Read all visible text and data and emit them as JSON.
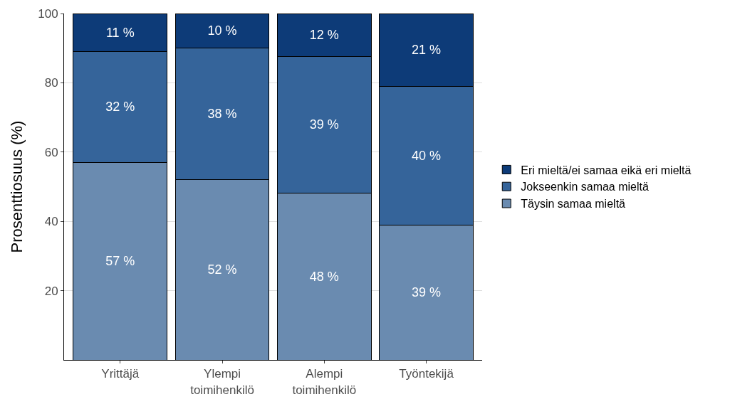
{
  "chart_data": {
    "type": "bar",
    "stacked": true,
    "ylabel": "Prosenttiosuus (%)",
    "categories": [
      "Yrittäjä",
      "Ylempi\ntoimihenkilö",
      "Alempi\ntoimihenkilö",
      "Työntekijä"
    ],
    "series": [
      {
        "name": "Täysin samaa mieltä",
        "color": "#6a8bb0",
        "values": [
          57,
          52,
          48.2,
          39
        ],
        "value_labels": [
          "57 %",
          "52 %",
          "48 %",
          "39 %"
        ]
      },
      {
        "name": "Jokseenkin samaa mieltä",
        "color": "#35649a",
        "values": [
          32,
          38,
          39.4,
          40
        ],
        "value_labels": [
          "32 %",
          "38 %",
          "39 %",
          "40 %"
        ]
      },
      {
        "name": "Eri mieltä/ei samaa eikä eri mieltä",
        "color": "#0d3b78",
        "values": [
          11,
          10,
          12.4,
          21
        ],
        "value_labels": [
          "11 %",
          "10 %",
          "12 %",
          "21 %"
        ]
      }
    ],
    "ylim": [
      0,
      100
    ],
    "yticks": [
      20,
      40,
      60,
      80,
      100
    ],
    "grid": "y",
    "legend": "right"
  }
}
